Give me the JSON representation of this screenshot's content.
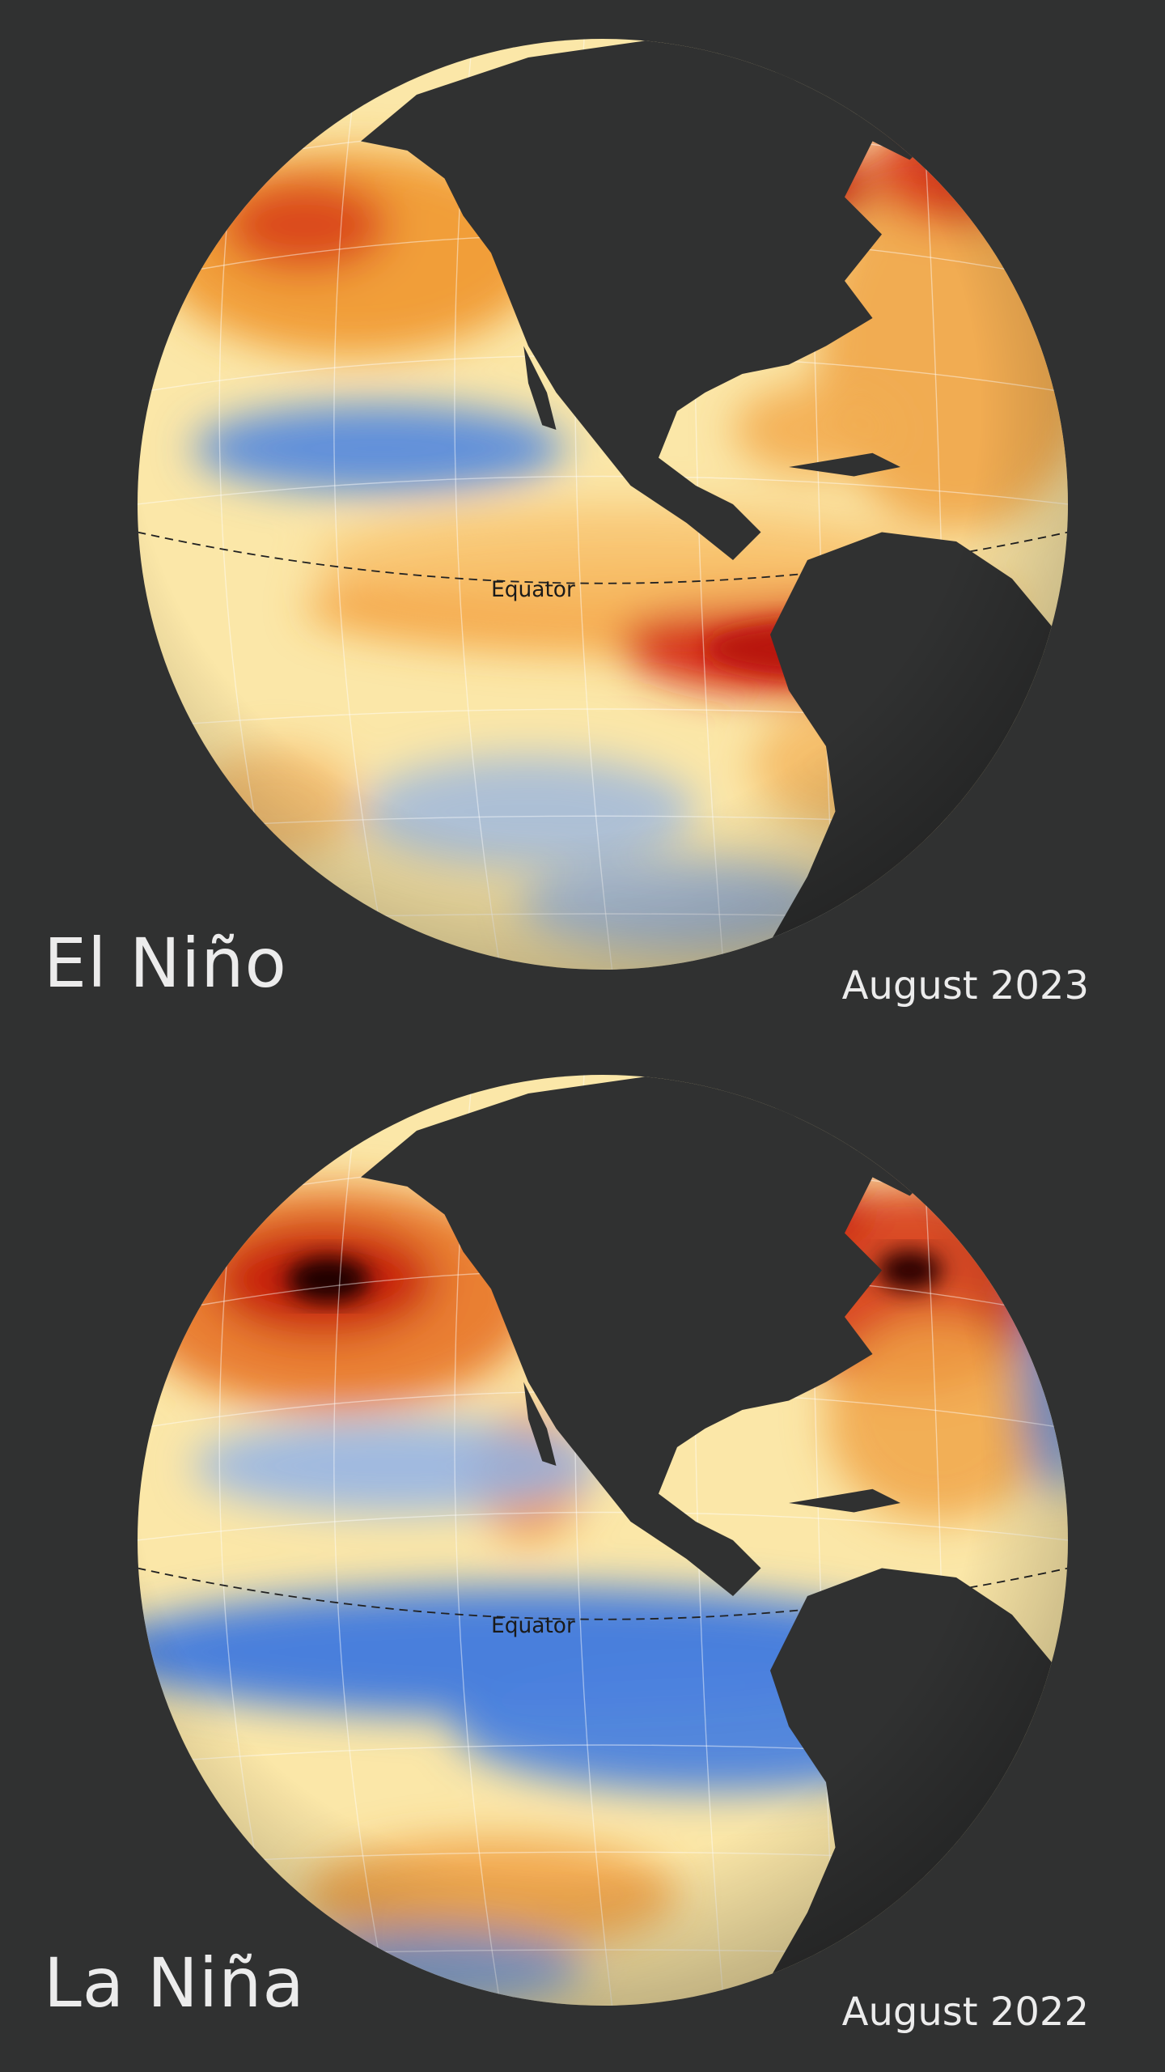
{
  "panels": [
    {
      "title": "El Niño",
      "date": "August 2023",
      "equator_label": "Equator",
      "colors": {
        "ocean_base": "#fbe7a8",
        "warm": "#f0a23c",
        "hot": "#d42a12",
        "extreme": "#1a0000",
        "cool": "#4f86e0",
        "land": "#303131"
      }
    },
    {
      "title": "La Niña",
      "date": "August 2022",
      "equator_label": "Equator",
      "colors": {
        "ocean_base": "#fbe7a8",
        "warm": "#f0a23c",
        "hot": "#d42a12",
        "extreme": "#1a0000",
        "cool": "#4f86e0",
        "land": "#303131"
      }
    }
  ]
}
